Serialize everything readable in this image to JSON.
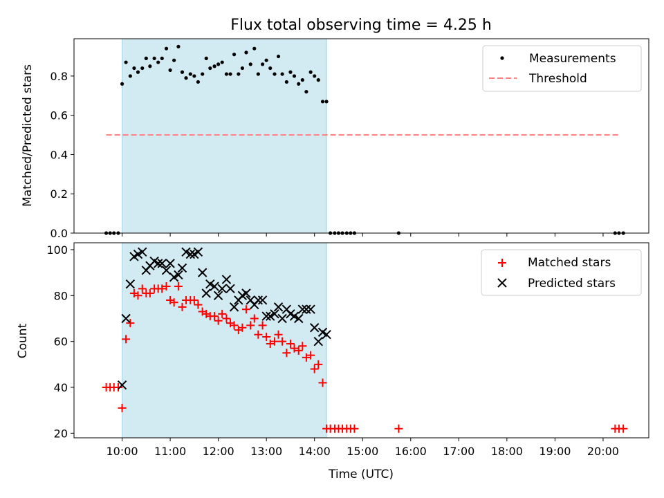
{
  "chart_data": [
    {
      "type": "scatter",
      "title": "Flux total observing time = 4.25 h",
      "ylabel": "Matched/Predicted stars",
      "xlabel": "",
      "xlim": [
        9.0,
        20.95
      ],
      "ylim": [
        0,
        0.99
      ],
      "yticks": [
        0.0,
        0.2,
        0.4,
        0.6,
        0.8
      ],
      "ytick_labels": [
        "0.0",
        "0.2",
        "0.4",
        "0.6",
        "0.8"
      ],
      "shaded_interval": [
        10.0,
        14.25
      ],
      "shade_color": "#add8e6",
      "legend_position": "top-right",
      "series": [
        {
          "name": "Measurements",
          "kind": "points",
          "color": "#000000",
          "x": [
            9.67,
            9.75,
            9.83,
            9.92,
            10.0,
            10.08,
            10.17,
            10.25,
            10.33,
            10.42,
            10.5,
            10.58,
            10.67,
            10.75,
            10.83,
            10.92,
            11.0,
            11.08,
            11.17,
            11.25,
            11.33,
            11.42,
            11.5,
            11.58,
            11.67,
            11.75,
            11.83,
            11.92,
            12.0,
            12.08,
            12.17,
            12.25,
            12.33,
            12.42,
            12.5,
            12.58,
            12.67,
            12.75,
            12.83,
            12.92,
            13.0,
            13.08,
            13.17,
            13.25,
            13.33,
            13.42,
            13.5,
            13.58,
            13.67,
            13.75,
            13.83,
            13.92,
            14.0,
            14.08,
            14.17,
            14.25,
            14.33,
            14.42,
            14.5,
            14.58,
            14.67,
            14.75,
            14.83,
            15.75,
            20.25,
            20.33,
            20.42
          ],
          "y": [
            0.0,
            0.0,
            0.0,
            0.0,
            0.76,
            0.87,
            0.8,
            0.84,
            0.82,
            0.84,
            0.89,
            0.85,
            0.89,
            0.87,
            0.89,
            0.94,
            0.83,
            0.88,
            0.95,
            0.82,
            0.79,
            0.81,
            0.8,
            0.77,
            0.81,
            0.89,
            0.84,
            0.85,
            0.86,
            0.87,
            0.81,
            0.81,
            0.91,
            0.81,
            0.84,
            0.92,
            0.86,
            0.94,
            0.81,
            0.86,
            0.88,
            0.84,
            0.81,
            0.9,
            0.81,
            0.77,
            0.82,
            0.8,
            0.76,
            0.78,
            0.72,
            0.82,
            0.8,
            0.78,
            0.67,
            0.67,
            0.0,
            0.0,
            0.0,
            0.0,
            0.0,
            0.0,
            0.0,
            0.0,
            0.0,
            0.0,
            0.0
          ]
        },
        {
          "name": "Threshold",
          "kind": "dashed-line",
          "color": "#ff7f7f",
          "x": [
            9.67,
            20.33
          ],
          "y": [
            0.5,
            0.5
          ]
        }
      ]
    },
    {
      "type": "scatter",
      "title": "",
      "ylabel": "Count",
      "xlabel": "Time (UTC)",
      "xlim": [
        9.0,
        20.95
      ],
      "ylim": [
        18,
        103
      ],
      "yticks": [
        20,
        40,
        60,
        80,
        100
      ],
      "ytick_labels": [
        "20",
        "40",
        "60",
        "80",
        "100"
      ],
      "xticks": [
        10,
        11,
        12,
        13,
        14,
        15,
        16,
        17,
        18,
        19,
        20
      ],
      "xtick_labels": [
        "10:00",
        "11:00",
        "12:00",
        "13:00",
        "14:00",
        "15:00",
        "16:00",
        "17:00",
        "18:00",
        "19:00",
        "20:00"
      ],
      "shaded_interval": [
        10.0,
        14.25
      ],
      "shade_color": "#add8e6",
      "legend_position": "top-right",
      "series": [
        {
          "name": "Matched stars",
          "marker": "+",
          "color": "#ff0000",
          "x": [
            9.67,
            9.75,
            9.83,
            9.92,
            10.0,
            10.08,
            10.17,
            10.25,
            10.33,
            10.42,
            10.5,
            10.58,
            10.67,
            10.75,
            10.83,
            10.92,
            11.0,
            11.08,
            11.17,
            11.25,
            11.33,
            11.42,
            11.5,
            11.58,
            11.67,
            11.75,
            11.83,
            11.92,
            12.0,
            12.08,
            12.17,
            12.25,
            12.33,
            12.42,
            12.5,
            12.58,
            12.67,
            12.75,
            12.83,
            12.92,
            13.0,
            13.08,
            13.17,
            13.25,
            13.33,
            13.42,
            13.5,
            13.58,
            13.67,
            13.75,
            13.83,
            13.92,
            14.0,
            14.08,
            14.17,
            14.25,
            14.33,
            14.42,
            14.5,
            14.58,
            14.67,
            14.75,
            14.83,
            15.75,
            20.25,
            20.33,
            20.42
          ],
          "y": [
            40,
            40,
            40,
            40,
            31,
            61,
            68,
            81,
            80,
            83,
            81,
            81,
            83,
            83,
            83,
            84,
            78,
            77,
            84,
            75,
            78,
            78,
            78,
            76,
            73,
            72,
            71,
            71,
            69,
            72,
            70,
            68,
            67,
            65,
            66,
            74,
            67,
            70,
            63,
            67,
            62,
            59,
            60,
            63,
            60,
            55,
            59,
            57,
            56,
            58,
            53,
            54,
            48,
            50,
            42,
            22,
            22,
            22,
            22,
            22,
            22,
            22,
            22,
            22,
            22,
            22,
            22
          ]
        },
        {
          "name": "Predicted stars",
          "marker": "x",
          "color": "#000000",
          "x": [
            10.0,
            10.08,
            10.17,
            10.25,
            10.33,
            10.42,
            10.5,
            10.58,
            10.67,
            10.75,
            10.83,
            10.92,
            11.0,
            11.08,
            11.17,
            11.25,
            11.33,
            11.42,
            11.5,
            11.58,
            11.67,
            11.75,
            11.83,
            11.92,
            12.0,
            12.08,
            12.17,
            12.25,
            12.33,
            12.42,
            12.5,
            12.58,
            12.67,
            12.75,
            12.83,
            12.92,
            13.0,
            13.08,
            13.17,
            13.25,
            13.33,
            13.42,
            13.5,
            13.58,
            13.67,
            13.75,
            13.83,
            13.92,
            14.0,
            14.08,
            14.17,
            14.25
          ],
          "y": [
            41,
            70,
            85,
            97,
            98,
            99,
            91,
            93,
            95,
            94,
            94,
            91,
            94,
            88,
            89,
            92,
            99,
            98,
            98,
            99,
            90,
            81,
            85,
            84,
            80,
            83,
            87,
            83,
            75,
            78,
            80,
            81,
            78,
            76,
            78,
            78,
            71,
            71,
            72,
            75,
            70,
            74,
            72,
            71,
            70,
            74,
            74,
            74,
            66,
            60,
            64,
            63
          ]
        }
      ]
    }
  ]
}
